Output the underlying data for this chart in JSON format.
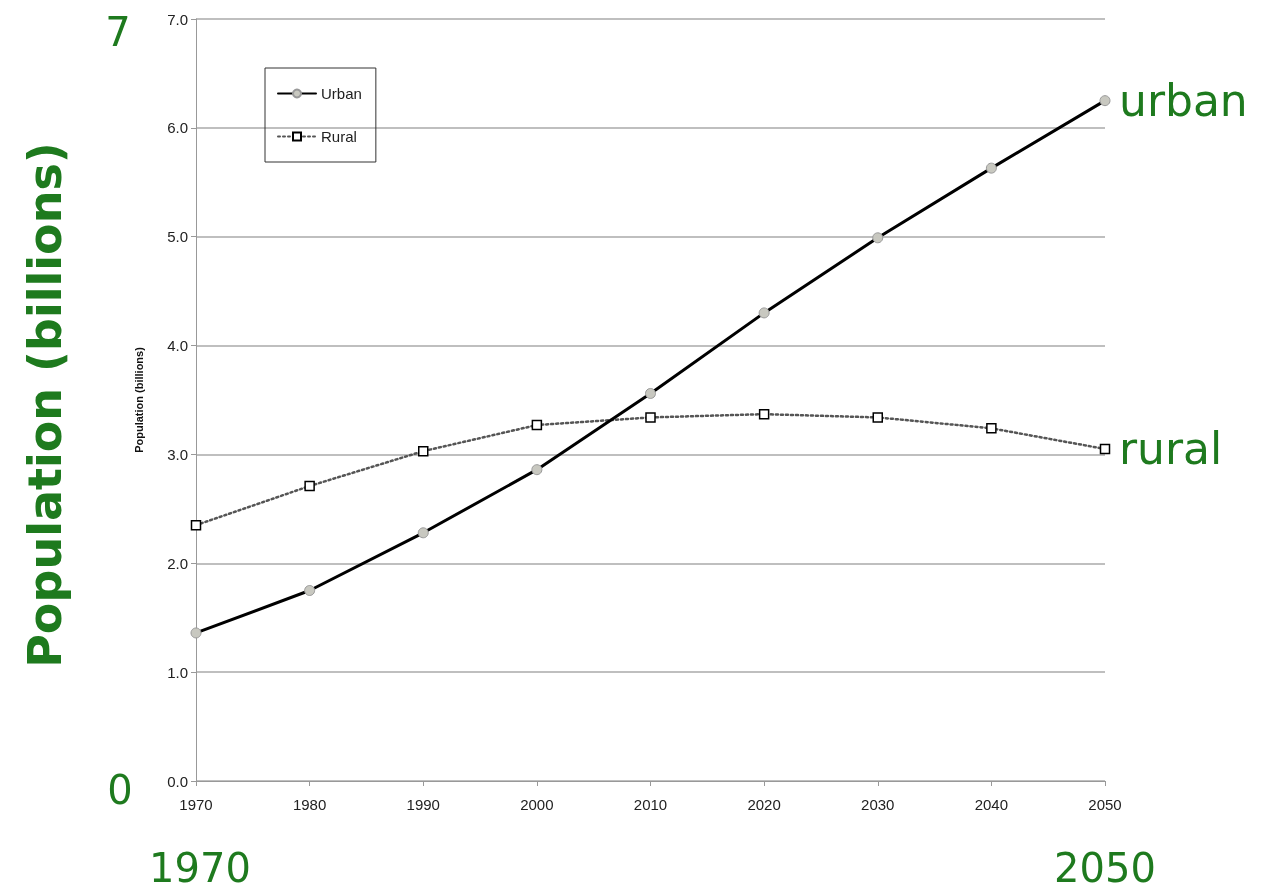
{
  "chart_data": {
    "type": "line",
    "ylabel": "Population (billions)",
    "x": [
      1970,
      1980,
      1990,
      2000,
      2010,
      2020,
      2030,
      2040,
      2050
    ],
    "series": [
      {
        "name": "Urban",
        "color": "#000000",
        "marker": "circle",
        "line_style": "solid",
        "values": [
          1.36,
          1.75,
          2.28,
          2.86,
          3.56,
          4.3,
          4.99,
          5.63,
          6.25
        ]
      },
      {
        "name": "Rural",
        "color": "#555555",
        "marker": "square",
        "line_style": "dotted",
        "values": [
          2.35,
          2.71,
          3.03,
          3.27,
          3.34,
          3.37,
          3.34,
          3.24,
          3.05
        ]
      }
    ],
    "xlim": [
      1970,
      2050
    ],
    "xticks": [
      1970,
      1980,
      1990,
      2000,
      2010,
      2020,
      2030,
      2040,
      2050
    ],
    "ylim": [
      0,
      7
    ],
    "yticks": [
      {
        "value": 0,
        "label": "0.0"
      },
      {
        "value": 1,
        "label": "1.0"
      },
      {
        "value": 2,
        "label": "2.0"
      },
      {
        "value": 3,
        "label": "3.0"
      },
      {
        "value": 4,
        "label": "4.0"
      },
      {
        "value": 5,
        "label": "5.0"
      },
      {
        "value": 6,
        "label": "6.0"
      },
      {
        "value": 7,
        "label": "7.0"
      }
    ],
    "grid": "y",
    "legend": "top left",
    "annotations": [
      "Population (billions)",
      "7",
      "0",
      "1970",
      "2050",
      {
        "text": "urban",
        "x": 2050,
        "y": 6.25
      },
      {
        "text": "rural",
        "x": 2050,
        "y": 3.05
      }
    ]
  }
}
